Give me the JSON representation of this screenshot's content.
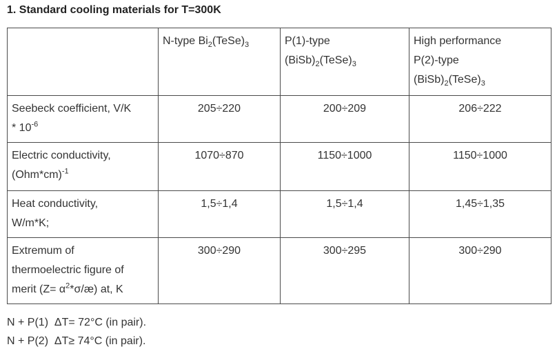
{
  "title": "1. Standard cooling materials for T=300K",
  "header": {
    "col1": {
      "pre": "N-type Bi",
      "sub1": "2",
      "mid": "(TeSe)",
      "sub2": "3"
    },
    "col2": {
      "line1": "P(1)-type",
      "pre": "(BiSb)",
      "sub1": "2",
      "mid": "(TeSe)",
      "sub2": "3"
    },
    "col3": {
      "line1": "High performance",
      "line2": "P(2)-type",
      "pre": "(BiSb)",
      "sub1": "2",
      "mid": "(TeSe)",
      "sub2": "3"
    }
  },
  "rows": [
    {
      "label": {
        "a": "Seebeck coefficient, V/K",
        "b": "* 10",
        "sup": "-6"
      },
      "n": "205÷220",
      "p1": "200÷209",
      "p2": "206÷222"
    },
    {
      "label": {
        "a": "Electric conductivity,",
        "b": "(Ohm*cm)",
        "sup": "-1"
      },
      "n": "1070÷870",
      "p1": "1150÷1000",
      "p2": "1150÷1000"
    },
    {
      "label": {
        "a": "Heat conductivity,",
        "b": "W/m*K;"
      },
      "n": "1,5÷1,4",
      "p1": "1,5÷1,4",
      "p2": "1,45÷1,35"
    },
    {
      "label": {
        "a": "Extremum of",
        "b": "thermoelectric figure of",
        "c": "merit (Z= α",
        "sup": "2",
        "d": "*σ/æ) at, K"
      },
      "n": "300÷290",
      "p1": "300÷295",
      "p2": "300÷290"
    }
  ],
  "notes": [
    "N + P(1)  ΔT= 72°C (in pair).",
    "N + P(2)  ΔT≥ 74°C (in pair)."
  ]
}
